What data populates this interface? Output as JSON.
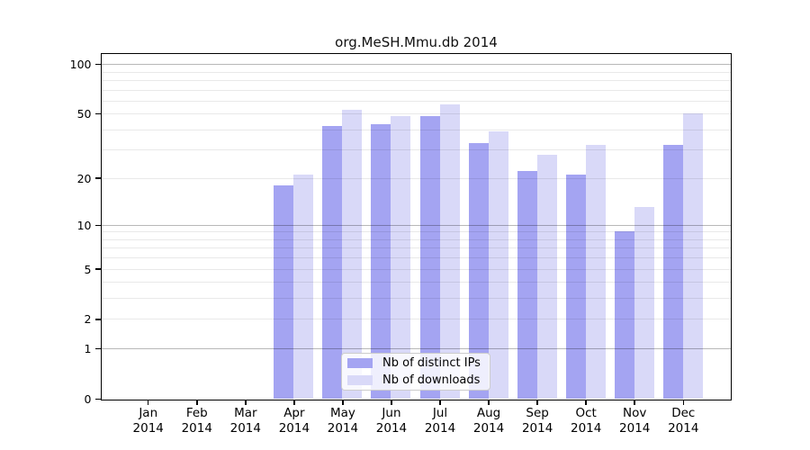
{
  "chart_data": {
    "type": "bar",
    "title": "org.MeSH.Mmu.db 2014",
    "categories": [
      "Jan",
      "Feb",
      "Mar",
      "Apr",
      "May",
      "Jun",
      "Jul",
      "Aug",
      "Sep",
      "Oct",
      "Nov",
      "Dec"
    ],
    "year_label": "2014",
    "series": [
      {
        "name": "Nb of distinct IPs",
        "color": "#a4a4f2",
        "values": [
          0,
          0,
          0,
          18,
          42,
          43,
          48,
          33,
          22,
          21,
          9,
          32
        ]
      },
      {
        "name": "Nb of downloads",
        "color": "#d9d9f8",
        "values": [
          0,
          0,
          0,
          21,
          53,
          48,
          57,
          39,
          28,
          32,
          13,
          50
        ]
      }
    ],
    "xlabel": "",
    "ylabel": "",
    "y_ticks": [
      0,
      1,
      2,
      5,
      10,
      20,
      50,
      100
    ],
    "y_scale": "log1p",
    "ylim": [
      0,
      115
    ],
    "major_gridlines": [
      1,
      10,
      100
    ],
    "minor_gridlines": [
      2,
      3,
      4,
      5,
      6,
      7,
      8,
      9,
      20,
      30,
      40,
      50,
      60,
      70,
      80,
      90
    ],
    "grid": true,
    "grid_color_major": "#b8b8b8",
    "grid_color_minor": "#e8e8e8",
    "axis_color": "#000000",
    "legend_position": "lower-center-inside"
  }
}
